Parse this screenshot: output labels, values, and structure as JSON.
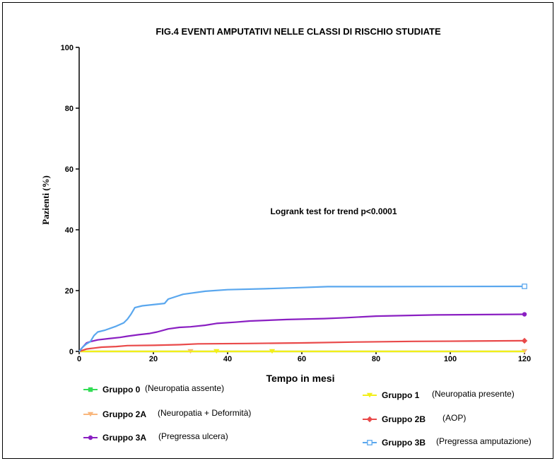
{
  "chart_data": {
    "type": "line",
    "title": "FIG.4 EVENTI AMPUTATIVI NELLE CLASSI DI RISCHIO STUDIATE",
    "xlabel": "Tempo in mesi",
    "ylabel": "Pazienti  (%)",
    "xlim": [
      0,
      120
    ],
    "ylim": [
      0,
      100
    ],
    "xticks": [
      "0",
      "20",
      "40",
      "60",
      "80",
      "100",
      "120"
    ],
    "yticks": [
      "0",
      "20",
      "40",
      "60",
      "80",
      "100"
    ],
    "grid": false,
    "annotation": "Logrank test for trend p<0.0001",
    "series": [
      {
        "name": "Gruppo 0",
        "desc": "(Neuropatia assente)",
        "color": "#33dd55",
        "marker": "square",
        "points": [
          [
            0,
            0
          ],
          [
            120,
            0
          ]
        ]
      },
      {
        "name": "Gruppo 1",
        "desc": "(Neuropatia presente)",
        "color": "#f2ef1a",
        "marker": "triangle-down",
        "points": [
          [
            0,
            0
          ],
          [
            120,
            0
          ]
        ],
        "marks": [
          [
            37,
            0
          ],
          [
            52,
            0
          ]
        ]
      },
      {
        "name": "Gruppo 2A",
        "desc": "(Neuropatia + Deformità)",
        "color": "#f9b77d",
        "marker": "triangle-down",
        "points": [
          [
            0,
            0
          ],
          [
            120,
            0
          ]
        ],
        "marks": [
          [
            30,
            0
          ],
          [
            120,
            0
          ]
        ]
      },
      {
        "name": "Gruppo 2B",
        "desc": "(AOP)",
        "color": "#e94a4a",
        "marker": "diamond",
        "points": [
          [
            0,
            0
          ],
          [
            1,
            0.4
          ],
          [
            2,
            0.8
          ],
          [
            4,
            1.1
          ],
          [
            6,
            1.4
          ],
          [
            10,
            1.6
          ],
          [
            13,
            1.9
          ],
          [
            20,
            2.0
          ],
          [
            27,
            2.2
          ],
          [
            32,
            2.5
          ],
          [
            45,
            2.6
          ],
          [
            60,
            2.8
          ],
          [
            75,
            3.1
          ],
          [
            90,
            3.3
          ],
          [
            105,
            3.4
          ],
          [
            120,
            3.5
          ]
        ],
        "marks": [
          [
            120,
            3.5
          ]
        ]
      },
      {
        "name": "Gruppo 3A",
        "desc": "(Pregressa ulcera)",
        "color": "#8a1fc2",
        "marker": "circle",
        "points": [
          [
            0,
            0
          ],
          [
            1,
            1.5
          ],
          [
            2,
            2.8
          ],
          [
            3,
            3.2
          ],
          [
            5,
            3.8
          ],
          [
            8,
            4.2
          ],
          [
            11,
            4.6
          ],
          [
            13,
            5.0
          ],
          [
            16,
            5.5
          ],
          [
            19,
            5.9
          ],
          [
            21,
            6.4
          ],
          [
            24,
            7.4
          ],
          [
            27,
            7.9
          ],
          [
            30,
            8.1
          ],
          [
            34,
            8.6
          ],
          [
            37,
            9.2
          ],
          [
            42,
            9.6
          ],
          [
            46,
            10.0
          ],
          [
            56,
            10.5
          ],
          [
            66,
            10.8
          ],
          [
            72,
            11.1
          ],
          [
            80,
            11.6
          ],
          [
            96,
            12.0
          ],
          [
            120,
            12.2
          ]
        ],
        "marks": [
          [
            120,
            12.2
          ]
        ]
      },
      {
        "name": "Gruppo 3B",
        "desc": "(Pregressa amputazione)",
        "color": "#5aa7ee",
        "marker": "square-open",
        "points": [
          [
            0,
            0
          ],
          [
            1,
            1.5
          ],
          [
            2,
            2.5
          ],
          [
            3,
            3.2
          ],
          [
            4,
            5.2
          ],
          [
            5,
            6.4
          ],
          [
            7,
            7.0
          ],
          [
            10,
            8.3
          ],
          [
            12,
            9.4
          ],
          [
            13,
            10.6
          ],
          [
            14,
            12.3
          ],
          [
            15,
            14.4
          ],
          [
            17,
            15.0
          ],
          [
            23,
            15.8
          ],
          [
            24,
            17.2
          ],
          [
            28,
            18.8
          ],
          [
            34,
            19.8
          ],
          [
            40,
            20.3
          ],
          [
            50,
            20.6
          ],
          [
            60,
            21.0
          ],
          [
            67,
            21.3
          ],
          [
            80,
            21.3
          ],
          [
            120,
            21.4
          ]
        ],
        "marks": [
          [
            120,
            21.4
          ]
        ]
      }
    ]
  }
}
